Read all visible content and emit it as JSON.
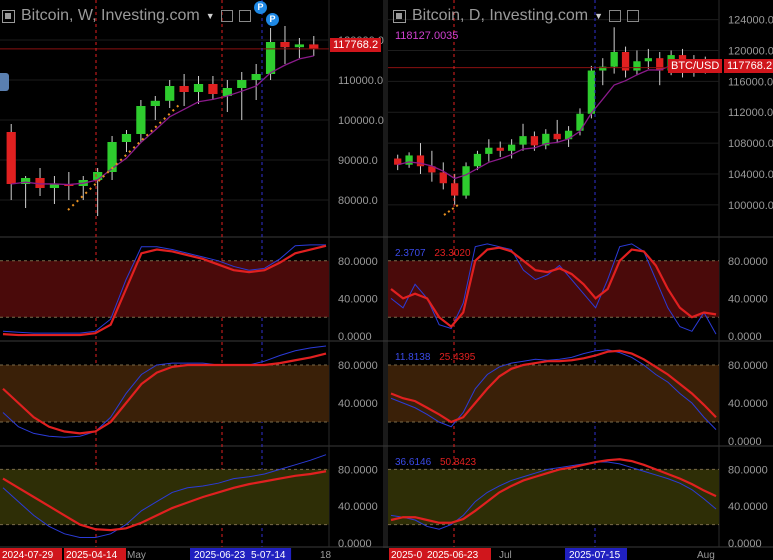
{
  "left": {
    "title": "Bitcoin, W, Investing.com",
    "price_tag": "117768.2",
    "badge1": "P",
    "badge2": "P",
    "yticks": [
      "120000.0",
      "110000.0",
      "100000.0",
      "90000.0",
      "80000.0"
    ],
    "osc_ticks": [
      "80.0000",
      "40.0000",
      "0.0000"
    ],
    "dates": [
      {
        "label": "2024-07-29",
        "style": "red"
      },
      {
        "label": "2025-04-14",
        "style": "red"
      },
      {
        "label": "May",
        "style": "plain"
      },
      {
        "label": "2025-06-23",
        "style": "blue"
      },
      {
        "label": "5-07-14",
        "style": "blue"
      },
      {
        "label": "18",
        "style": "plain"
      }
    ]
  },
  "right": {
    "title": "Bitcoin, D, Investing.com",
    "cursor_value": "118127.0035",
    "symbol_tag": "BTC/USD",
    "price_tag": "117768.2",
    "yticks": [
      "124000.0",
      "120000.0",
      "116000.0",
      "112000.0",
      "108000.0",
      "104000.0",
      "100000.0"
    ],
    "osc_ticks": [
      "80.0000",
      "40.0000",
      "0.0000"
    ],
    "osc1_values": [
      "2.3707",
      "23.3020"
    ],
    "osc2_values": [
      "11.8138",
      "25.4395"
    ],
    "osc3_values": [
      "36.6146",
      "50.8423"
    ],
    "dates": [
      {
        "label": "2025-0",
        "style": "red"
      },
      {
        "label": "2025-06-23",
        "style": "red"
      },
      {
        "label": "Jul",
        "style": "plain"
      },
      {
        "label": "2025-07-15",
        "style": "blue"
      },
      {
        "label": "Aug",
        "style": "plain"
      }
    ]
  },
  "colors": {
    "up": "#2ecc2e",
    "down": "#e02020",
    "k_line": "#2b3bd8",
    "d_line": "#e02020",
    "ma": "#8b1a8b",
    "zone1": "#4a0a0a",
    "zone2": "#3a2008",
    "zone3": "#2e2e06"
  },
  "chart_data": [
    {
      "type": "candlestick",
      "title": "Bitcoin, W, Investing.com",
      "ylim": [
        73000,
        128000
      ],
      "candles": [
        [
          97000,
          99000,
          80000,
          84000
        ],
        [
          84000,
          86000,
          78000,
          85500
        ],
        [
          85500,
          88000,
          81000,
          83000
        ],
        [
          83000,
          86000,
          79000,
          84000
        ],
        [
          84000,
          87000,
          80000,
          83500
        ],
        [
          83500,
          86000,
          80000,
          85000
        ],
        [
          85000,
          88000,
          76000,
          87000
        ],
        [
          87000,
          96000,
          85000,
          94500
        ],
        [
          94500,
          97500,
          92000,
          96500
        ],
        [
          96500,
          105000,
          94500,
          103500
        ],
        [
          103500,
          106000,
          100000,
          104800
        ],
        [
          104800,
          110000,
          103000,
          108500
        ],
        [
          108500,
          111500,
          103500,
          107000
        ],
        [
          107000,
          111000,
          104000,
          109000
        ],
        [
          109000,
          111000,
          105000,
          106500
        ],
        [
          106000,
          110000,
          102000,
          108000
        ],
        [
          108000,
          112000,
          100000,
          110000
        ],
        [
          110000,
          114000,
          105000,
          111500
        ],
        [
          111500,
          123000,
          110000,
          119500
        ],
        [
          119500,
          123500,
          114000,
          118200
        ],
        [
          118200,
          120500,
          115500,
          118900
        ],
        [
          118900,
          121000,
          116000,
          117768
        ]
      ]
    },
    {
      "type": "candlestick",
      "title": "Bitcoin, D, Investing.com",
      "ylim": [
        97000,
        125500
      ],
      "candles": [
        [
          106000,
          106500,
          104500,
          105200
        ],
        [
          105200,
          106800,
          104800,
          106400
        ],
        [
          106400,
          108000,
          104000,
          105000
        ],
        [
          105000,
          107000,
          103000,
          104200
        ],
        [
          104200,
          105500,
          102000,
          102800
        ],
        [
          102800,
          104000,
          100000,
          101200
        ],
        [
          101200,
          105500,
          100800,
          105000
        ],
        [
          105000,
          107000,
          104500,
          106600
        ],
        [
          106600,
          108500,
          105600,
          107400
        ],
        [
          107400,
          108200,
          106200,
          107000
        ],
        [
          107000,
          108500,
          106000,
          107800
        ],
        [
          107800,
          110500,
          107000,
          108900
        ],
        [
          108900,
          109500,
          107000,
          107700
        ],
        [
          107700,
          109800,
          107200,
          109200
        ],
        [
          109200,
          111000,
          108000,
          108500
        ],
        [
          108500,
          110200,
          107500,
          109600
        ],
        [
          109600,
          112500,
          109000,
          111800
        ],
        [
          111800,
          118000,
          111200,
          117400
        ],
        [
          117400,
          119000,
          115500,
          117900
        ],
        [
          117900,
          123000,
          117000,
          119800
        ],
        [
          119800,
          120500,
          116500,
          117400
        ],
        [
          117400,
          120000,
          116800,
          118600
        ],
        [
          118600,
          120200,
          117600,
          119000
        ],
        [
          119000,
          119800,
          115500,
          117400
        ],
        [
          117400,
          120000,
          116800,
          119400
        ],
        [
          119400,
          120200,
          116500,
          117800
        ],
        [
          117800,
          119400,
          116600,
          118400
        ],
        [
          118400,
          119200,
          117000,
          117768
        ]
      ]
    },
    {
      "type": "line",
      "series": [
        {
          "values": [
            5,
            4,
            3,
            3,
            3,
            3,
            5,
            18,
            60,
            95,
            95,
            92,
            88,
            84,
            80,
            74,
            70,
            72,
            82,
            96,
            97,
            97
          ]
        },
        {
          "values": [
            2,
            1,
            1,
            1,
            1,
            1,
            3,
            12,
            50,
            88,
            92,
            90,
            86,
            82,
            76,
            70,
            68,
            70,
            78,
            88,
            92,
            96
          ]
        }
      ],
      "ylim": [
        0,
        100
      ]
    },
    {
      "type": "line",
      "series": [
        {
          "values": [
            30,
            15,
            8,
            5,
            4,
            5,
            10,
            25,
            50,
            70,
            80,
            82,
            82,
            82,
            80,
            80,
            80,
            84,
            90,
            95,
            98,
            100
          ]
        },
        {
          "values": [
            55,
            40,
            25,
            15,
            10,
            8,
            10,
            20,
            40,
            60,
            72,
            78,
            80,
            80,
            80,
            80,
            80,
            80,
            82,
            85,
            88,
            92
          ]
        }
      ],
      "ylim": [
        0,
        100
      ]
    },
    {
      "type": "line",
      "series": [
        {
          "values": [
            60,
            45,
            30,
            18,
            10,
            6,
            6,
            10,
            20,
            35,
            45,
            55,
            60,
            62,
            65,
            70,
            72,
            75,
            80,
            85,
            90,
            96
          ]
        },
        {
          "values": [
            70,
            60,
            50,
            40,
            30,
            20,
            15,
            14,
            16,
            22,
            30,
            38,
            44,
            50,
            55,
            60,
            64,
            67,
            70,
            73,
            75,
            78
          ]
        }
      ],
      "ylim": [
        0,
        100
      ]
    },
    {
      "type": "line",
      "series": [
        {
          "values": [
            40,
            30,
            55,
            40,
            12,
            8,
            35,
            95,
            98,
            95,
            92,
            70,
            60,
            65,
            75,
            60,
            45,
            30,
            60,
            95,
            98,
            90,
            60,
            30,
            10,
            5,
            25,
            2
          ]
        },
        {
          "values": [
            50,
            40,
            45,
            40,
            20,
            10,
            25,
            80,
            92,
            94,
            90,
            80,
            70,
            68,
            72,
            66,
            55,
            40,
            50,
            80,
            92,
            90,
            75,
            50,
            30,
            20,
            25,
            23
          ]
        }
      ],
      "ylim": [
        0,
        100
      ]
    },
    {
      "type": "line",
      "series": [
        {
          "values": [
            45,
            40,
            35,
            28,
            20,
            15,
            30,
            55,
            70,
            78,
            82,
            84,
            86,
            85,
            86,
            88,
            92,
            95,
            96,
            93,
            88,
            80,
            70,
            62,
            50,
            40,
            25,
            12
          ]
        },
        {
          "values": [
            50,
            45,
            42,
            35,
            28,
            20,
            25,
            40,
            55,
            68,
            76,
            80,
            82,
            84,
            84,
            85,
            87,
            90,
            94,
            95,
            92,
            86,
            78,
            70,
            60,
            50,
            38,
            25
          ]
        }
      ],
      "ylim": [
        0,
        100
      ]
    },
    {
      "type": "line",
      "series": [
        {
          "values": [
            30,
            28,
            25,
            18,
            15,
            20,
            30,
            45,
            55,
            62,
            68,
            72,
            76,
            80,
            82,
            84,
            86,
            88,
            88,
            86,
            82,
            78,
            74,
            70,
            65,
            58,
            48,
            37
          ]
        },
        {
          "values": [
            25,
            28,
            28,
            25,
            22,
            22,
            26,
            35,
            45,
            55,
            62,
            68,
            72,
            76,
            80,
            82,
            85,
            88,
            90,
            91,
            89,
            85,
            80,
            75,
            70,
            64,
            57,
            51
          ]
        }
      ],
      "ylim": [
        0,
        100
      ]
    }
  ]
}
